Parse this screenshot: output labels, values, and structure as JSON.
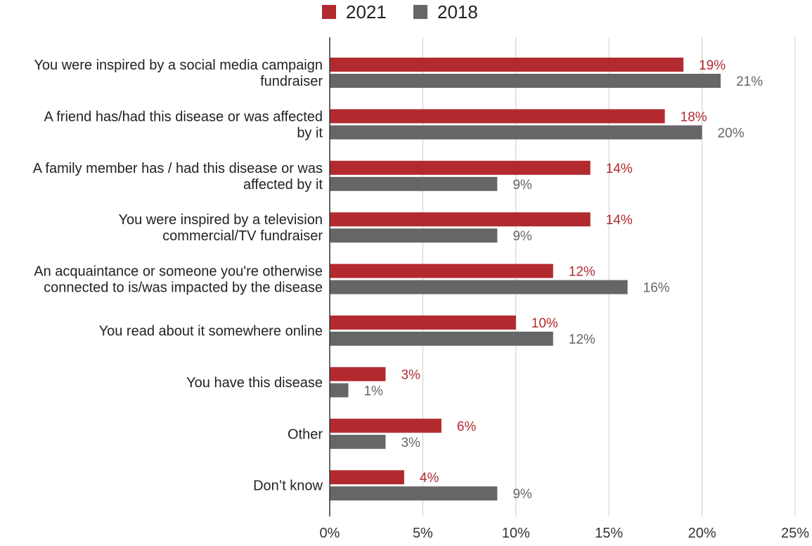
{
  "chart_data": {
    "type": "bar",
    "orientation": "horizontal",
    "title": "",
    "xlabel": "",
    "ylabel": "",
    "xlim": [
      0,
      25
    ],
    "x_ticks": [
      0,
      5,
      10,
      15,
      20,
      25
    ],
    "x_tick_labels": [
      "0%",
      "5%",
      "10%",
      "15%",
      "20%",
      "25%"
    ],
    "grid": true,
    "legend_position": "top-center",
    "categories": [
      [
        "You were inspired by a social media campaign",
        "fundraiser"
      ],
      [
        "A friend has/had this disease or was affected",
        "by it"
      ],
      [
        "A family member has / had this disease or was",
        "affected by it"
      ],
      [
        "You were inspired by a television",
        "commercial/TV fundraiser"
      ],
      [
        "An acquaintance or someone you're otherwise",
        "connected to is/was impacted by the disease"
      ],
      [
        "You read about it somewhere online"
      ],
      [
        "You have this disease"
      ],
      [
        "Other"
      ],
      [
        "Don’t know"
      ]
    ],
    "series": [
      {
        "name": "2021",
        "color": "#b22a2e",
        "label_color": "#b22a2e",
        "values": [
          19,
          18,
          14,
          14,
          12,
          10,
          3,
          6,
          4
        ],
        "data_labels": [
          "19%",
          "18%",
          "14%",
          "14%",
          "12%",
          "10%",
          "3%",
          "6%",
          "4%"
        ]
      },
      {
        "name": "2018",
        "color": "#666666",
        "label_color": "#666666",
        "values": [
          21,
          20,
          9,
          9,
          16,
          12,
          1,
          3,
          9
        ],
        "data_labels": [
          "21%",
          "20%",
          "9%",
          "9%",
          "16%",
          "12%",
          "1%",
          "3%",
          "9%"
        ]
      }
    ]
  }
}
